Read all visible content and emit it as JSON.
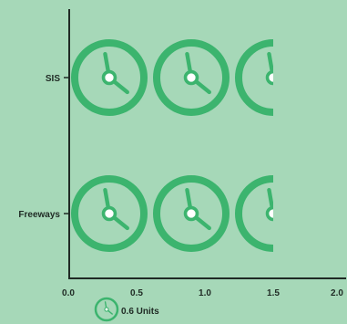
{
  "chart_data": {
    "type": "bar",
    "categories": [
      "SIS",
      "Freeways"
    ],
    "values": [
      1.5,
      1.5
    ],
    "unit_value": 0.6,
    "xlim": [
      0.0,
      2.0
    ],
    "xticks": [
      "0.0",
      "0.5",
      "1.0",
      "1.5",
      "2.0"
    ],
    "grid": false,
    "legend": {
      "icon": "clock-icon",
      "label": "0.6 Units",
      "placement": "bottom"
    },
    "colors": {
      "background": "#a6d8b8",
      "icon": "#3cb46e",
      "axis": "#1f2a24",
      "text": "#1f2a24"
    }
  }
}
